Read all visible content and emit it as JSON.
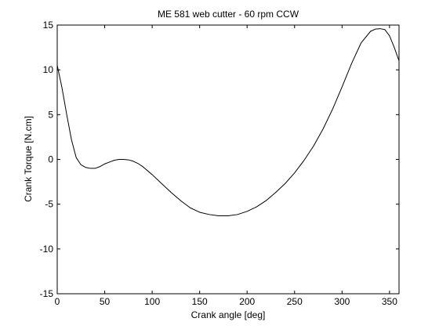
{
  "chart_data": {
    "type": "line",
    "title": "ME 581 web cutter - 60 rpm CCW",
    "xlabel": "Crank angle [deg]",
    "ylabel": "Crank Torque [N.cm]",
    "xlim": [
      0,
      360
    ],
    "ylim": [
      -15,
      15
    ],
    "grid": false,
    "xticks": [
      0,
      50,
      100,
      150,
      200,
      250,
      300,
      350
    ],
    "yticks": [
      -15,
      -10,
      -5,
      0,
      5,
      10,
      15
    ],
    "line_color": "#000000",
    "series": [
      {
        "x": [
          0,
          5,
          10,
          15,
          20,
          25,
          30,
          35,
          40,
          45,
          50,
          55,
          60,
          65,
          70,
          75,
          80,
          85,
          90,
          100,
          110,
          120,
          130,
          140,
          150,
          160,
          170,
          180,
          190,
          200,
          210,
          220,
          230,
          240,
          250,
          260,
          270,
          280,
          290,
          300,
          310,
          320,
          330,
          335,
          340,
          345,
          350,
          355,
          360
        ],
        "y": [
          10.5,
          8.0,
          5.0,
          2.2,
          0.2,
          -0.6,
          -0.9,
          -1.0,
          -1.0,
          -0.8,
          -0.5,
          -0.3,
          -0.1,
          0.0,
          0.0,
          -0.05,
          -0.2,
          -0.45,
          -0.8,
          -1.7,
          -2.7,
          -3.7,
          -4.6,
          -5.4,
          -5.9,
          -6.15,
          -6.3,
          -6.3,
          -6.15,
          -5.8,
          -5.3,
          -4.6,
          -3.7,
          -2.7,
          -1.5,
          -0.1,
          1.5,
          3.4,
          5.6,
          8.1,
          10.7,
          13.0,
          14.3,
          14.55,
          14.6,
          14.5,
          13.8,
          12.5,
          11.0
        ]
      }
    ]
  }
}
